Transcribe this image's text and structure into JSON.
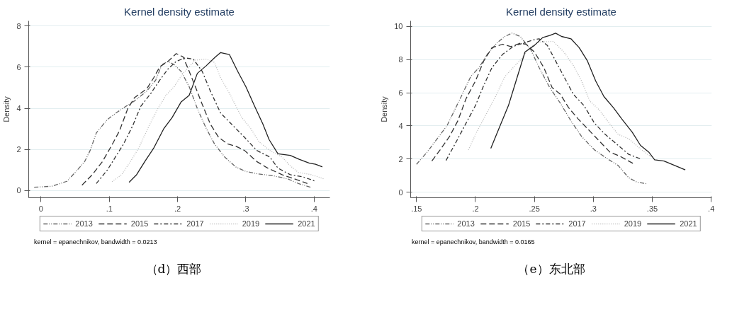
{
  "chart_data": [
    {
      "type": "line",
      "title": "Kernel density estimate",
      "ylabel": "Density",
      "xlim": [
        -0.018,
        0.423
      ],
      "ylim": [
        -0.35,
        8.25
      ],
      "xticks": [
        0,
        {
          "value": 0.1,
          "label": ".1"
        },
        {
          "value": 0.2,
          "label": ".2"
        },
        {
          "value": 0.3,
          "label": ".3"
        },
        {
          "value": 0.4,
          "label": ".4"
        }
      ],
      "yticks": [
        0,
        2,
        4,
        6,
        8
      ],
      "grid": "y",
      "legend": "bottom",
      "annotations": [
        "kernel = epanechnikov, bandwidth = 0.0213",
        "（d）西部"
      ],
      "series": [
        {
          "name": "2013",
          "color": "#666666",
          "line_style": "dashdotdot",
          "x": [
            -0.01,
            0.016,
            0.038,
            0.05,
            0.064,
            0.072,
            0.081,
            0.097,
            0.112,
            0.124,
            0.137,
            0.155,
            0.168,
            0.177,
            0.186,
            0.195,
            0.205,
            0.217,
            0.229,
            0.242,
            0.254,
            0.269,
            0.285,
            0.3,
            0.316,
            0.34,
            0.362,
            0.377,
            0.396
          ],
          "values": [
            0.16,
            0.21,
            0.45,
            0.88,
            1.41,
            1.95,
            2.8,
            3.45,
            3.82,
            4.09,
            4.36,
            4.84,
            5.37,
            6.12,
            6.28,
            6.12,
            5.8,
            5.05,
            3.98,
            3.02,
            2.27,
            1.63,
            1.15,
            0.93,
            0.82,
            0.72,
            0.56,
            0.34,
            0.15
          ]
        },
        {
          "name": "2015",
          "color": "#333333",
          "line_style": "dashed",
          "x": [
            0.06,
            0.075,
            0.09,
            0.103,
            0.115,
            0.127,
            0.137,
            0.155,
            0.165,
            0.174,
            0.186,
            0.198,
            0.208,
            0.217,
            0.226,
            0.236,
            0.248,
            0.26,
            0.273,
            0.285,
            0.298,
            0.316,
            0.332,
            0.353,
            0.372,
            0.39
          ],
          "values": [
            0.26,
            0.77,
            1.41,
            2.16,
            2.91,
            3.98,
            4.52,
            4.95,
            5.48,
            6.02,
            6.28,
            6.66,
            6.5,
            5.8,
            5.05,
            4.2,
            3.23,
            2.59,
            2.27,
            2.16,
            1.95,
            1.41,
            1.09,
            0.77,
            0.56,
            0.34
          ]
        },
        {
          "name": "2017",
          "color": "#333333",
          "line_style": "dashdot",
          "x": [
            0.081,
            0.097,
            0.109,
            0.121,
            0.134,
            0.146,
            0.161,
            0.174,
            0.186,
            0.198,
            0.211,
            0.223,
            0.236,
            0.248,
            0.263,
            0.279,
            0.298,
            0.316,
            0.335,
            0.347,
            0.365,
            0.384,
            0.402
          ],
          "values": [
            0.34,
            0.99,
            1.63,
            2.27,
            3.13,
            4.09,
            4.73,
            5.37,
            5.91,
            6.28,
            6.45,
            6.39,
            5.8,
            4.84,
            3.77,
            3.23,
            2.59,
            1.95,
            1.63,
            1.09,
            0.77,
            0.66,
            0.45
          ]
        },
        {
          "name": "2019",
          "color": "#b8b8b8",
          "line_style": "dotted",
          "x": [
            0.104,
            0.118,
            0.131,
            0.143,
            0.158,
            0.171,
            0.183,
            0.195,
            0.208,
            0.217,
            0.226,
            0.242,
            0.254,
            0.263,
            0.276,
            0.294,
            0.307,
            0.319,
            0.335,
            0.353,
            0.365,
            0.377,
            0.396,
            0.415
          ],
          "values": [
            0.43,
            0.77,
            1.41,
            2.06,
            3.13,
            3.98,
            4.63,
            5.05,
            5.7,
            6.02,
            6.34,
            6.39,
            6.23,
            5.48,
            4.73,
            3.55,
            3.02,
            2.38,
            1.95,
            1.63,
            1.2,
            0.88,
            0.77,
            0.56
          ]
        },
        {
          "name": "2021",
          "color": "#222222",
          "line_style": "solid",
          "x": [
            0.129,
            0.14,
            0.152,
            0.165,
            0.18,
            0.192,
            0.205,
            0.217,
            0.229,
            0.242,
            0.254,
            0.263,
            0.276,
            0.288,
            0.3,
            0.313,
            0.325,
            0.334,
            0.347,
            0.365,
            0.378,
            0.393,
            0.402,
            0.412
          ],
          "values": [
            0.4,
            0.77,
            1.41,
            2.06,
            3.02,
            3.55,
            4.3,
            4.63,
            5.7,
            6.07,
            6.45,
            6.71,
            6.61,
            5.8,
            5.05,
            4.09,
            3.23,
            2.48,
            1.79,
            1.71,
            1.52,
            1.33,
            1.28,
            1.15
          ]
        }
      ]
    },
    {
      "type": "line",
      "title": "Kernel density estimate",
      "ylabel": "Density",
      "xlim": [
        0.145,
        0.4005
      ],
      "ylim": [
        -0.34,
        10.34
      ],
      "xticks": [
        {
          "value": 0.15,
          "label": ".15"
        },
        {
          "value": 0.2,
          "label": ".2"
        },
        {
          "value": 0.25,
          "label": ".25"
        },
        {
          "value": 0.3,
          "label": ".3"
        },
        {
          "value": 0.35,
          "label": ".35"
        },
        {
          "value": 0.4,
          "label": ".4"
        }
      ],
      "yticks": [
        0,
        2,
        4,
        6,
        8,
        10
      ],
      "grid": "y",
      "legend": "bottom",
      "annotations": [
        "kernel = epanechnikov, bandwidth = 0.0165",
        "（e）东北部"
      ],
      "series": [
        {
          "name": "2013",
          "color": "#666666",
          "line_style": "dashdotdot",
          "x": [
            0.15,
            0.159,
            0.169,
            0.176,
            0.187,
            0.196,
            0.203,
            0.21,
            0.218,
            0.225,
            0.231,
            0.238,
            0.247,
            0.254,
            0.263,
            0.272,
            0.281,
            0.29,
            0.301,
            0.312,
            0.321,
            0.33,
            0.337,
            0.345
          ],
          "values": [
            1.68,
            2.42,
            3.36,
            4.03,
            5.64,
            6.98,
            7.52,
            8.32,
            8.99,
            9.4,
            9.6,
            9.4,
            8.59,
            7.52,
            6.31,
            5.37,
            4.3,
            3.36,
            2.55,
            2.01,
            1.61,
            0.87,
            0.6,
            0.51
          ]
        },
        {
          "name": "2015",
          "color": "#333333",
          "line_style": "dashed",
          "x": [
            0.163,
            0.17,
            0.178,
            0.185,
            0.192,
            0.2,
            0.207,
            0.214,
            0.223,
            0.23,
            0.238,
            0.243,
            0.25,
            0.258,
            0.265,
            0.272,
            0.279,
            0.287,
            0.296,
            0.305,
            0.314,
            0.323,
            0.335
          ],
          "values": [
            1.88,
            2.55,
            3.36,
            4.3,
            5.64,
            6.71,
            7.92,
            8.72,
            8.93,
            8.79,
            8.99,
            8.93,
            8.46,
            7.52,
            6.31,
            5.91,
            5.1,
            4.43,
            3.76,
            3.09,
            2.42,
            2.15,
            1.68
          ]
        },
        {
          "name": "2017",
          "color": "#333333",
          "line_style": "dashdot",
          "x": [
            0.175,
            0.183,
            0.192,
            0.2,
            0.207,
            0.214,
            0.223,
            0.232,
            0.24,
            0.249,
            0.254,
            0.261,
            0.268,
            0.276,
            0.283,
            0.292,
            0.301,
            0.31,
            0.319,
            0.33,
            0.34
          ],
          "values": [
            1.91,
            2.95,
            4.16,
            5.23,
            6.44,
            7.52,
            8.32,
            8.79,
            8.99,
            9.19,
            9.26,
            8.86,
            7.92,
            6.85,
            5.91,
            5.23,
            4.16,
            3.49,
            2.95,
            2.28,
            2.01
          ]
        },
        {
          "name": "2019",
          "color": "#b8b8b8",
          "line_style": "dotted",
          "x": [
            0.194,
            0.201,
            0.21,
            0.217,
            0.225,
            0.232,
            0.239,
            0.246,
            0.254,
            0.266,
            0.275,
            0.283,
            0.29,
            0.297,
            0.305,
            0.312,
            0.321,
            0.33,
            0.341,
            0.35
          ],
          "values": [
            2.55,
            3.62,
            4.83,
            5.77,
            6.98,
            7.52,
            8.05,
            8.72,
            9.06,
            9.1,
            8.46,
            7.65,
            6.71,
            5.5,
            4.97,
            4.3,
            3.49,
            3.22,
            2.55,
            2.08
          ]
        },
        {
          "name": "2021",
          "color": "#222222",
          "line_style": "solid",
          "x": [
            0.213,
            0.221,
            0.228,
            0.235,
            0.242,
            0.25,
            0.257,
            0.263,
            0.268,
            0.273,
            0.281,
            0.288,
            0.295,
            0.302,
            0.309,
            0.317,
            0.324,
            0.333,
            0.34,
            0.347,
            0.352,
            0.36,
            0.369,
            0.378
          ],
          "values": [
            2.64,
            4.03,
            5.23,
            6.85,
            8.46,
            8.86,
            9.33,
            9.46,
            9.6,
            9.4,
            9.26,
            8.72,
            7.92,
            6.71,
            5.77,
            5.1,
            4.43,
            3.62,
            2.82,
            2.42,
            1.95,
            1.88,
            1.61,
            1.34
          ]
        }
      ]
    }
  ]
}
